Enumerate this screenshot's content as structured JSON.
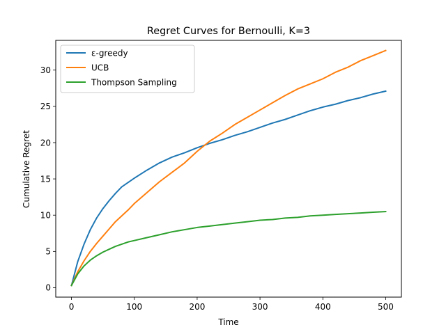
{
  "chart_data": {
    "type": "line",
    "title": "Regret Curves for Bernoulli, K=3",
    "xlabel": "Time",
    "ylabel": "Cumulative Regret",
    "xlim": [
      -25,
      525
    ],
    "ylim": [
      -1.3,
      34.1
    ],
    "xticks": [
      0,
      100,
      200,
      300,
      400,
      500
    ],
    "yticks": [
      0,
      5,
      10,
      15,
      20,
      25,
      30
    ],
    "grid": false,
    "legend_position": "top-left",
    "series": [
      {
        "name": "ε-greedy",
        "color": "#1f77b4",
        "x": [
          0,
          10,
          20,
          30,
          40,
          50,
          60,
          70,
          80,
          90,
          100,
          120,
          140,
          160,
          180,
          200,
          220,
          240,
          260,
          280,
          300,
          320,
          340,
          360,
          380,
          400,
          420,
          440,
          460,
          480,
          500
        ],
        "y": [
          0.3,
          3.6,
          6.0,
          8.0,
          9.6,
          10.9,
          12.0,
          13.0,
          13.9,
          14.5,
          15.1,
          16.2,
          17.2,
          18.0,
          18.6,
          19.3,
          19.9,
          20.4,
          21.0,
          21.5,
          22.1,
          22.7,
          23.2,
          23.8,
          24.4,
          24.9,
          25.3,
          25.8,
          26.2,
          26.7,
          27.1
        ]
      },
      {
        "name": "UCB",
        "color": "#ff7f0e",
        "x": [
          0,
          10,
          20,
          30,
          40,
          50,
          60,
          70,
          80,
          90,
          100,
          120,
          140,
          160,
          180,
          200,
          220,
          240,
          260,
          280,
          300,
          320,
          340,
          360,
          380,
          400,
          420,
          440,
          460,
          480,
          500
        ],
        "y": [
          0.3,
          2.2,
          3.7,
          5.0,
          6.1,
          7.1,
          8.1,
          9.1,
          9.9,
          10.7,
          11.6,
          13.1,
          14.6,
          15.9,
          17.2,
          18.8,
          20.2,
          21.3,
          22.5,
          23.5,
          24.5,
          25.5,
          26.5,
          27.4,
          28.1,
          28.8,
          29.7,
          30.4,
          31.3,
          32.0,
          32.7
        ]
      },
      {
        "name": "Thompson Sampling",
        "color": "#2ca02c",
        "x": [
          0,
          10,
          20,
          30,
          40,
          50,
          60,
          70,
          80,
          90,
          100,
          120,
          140,
          160,
          180,
          200,
          220,
          240,
          260,
          280,
          300,
          320,
          340,
          360,
          380,
          400,
          420,
          440,
          460,
          480,
          500
        ],
        "y": [
          0.3,
          1.9,
          3.0,
          3.8,
          4.4,
          4.9,
          5.3,
          5.7,
          6.0,
          6.3,
          6.5,
          6.9,
          7.3,
          7.7,
          8.0,
          8.3,
          8.5,
          8.7,
          8.9,
          9.1,
          9.3,
          9.4,
          9.6,
          9.7,
          9.9,
          10.0,
          10.1,
          10.2,
          10.3,
          10.4,
          10.5
        ]
      }
    ]
  }
}
